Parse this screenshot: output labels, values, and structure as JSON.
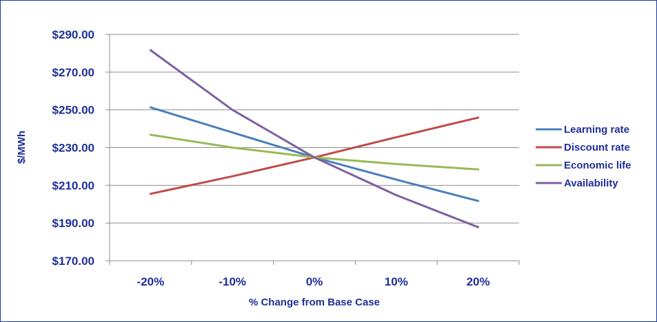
{
  "chart_data": {
    "type": "line",
    "title": "",
    "xlabel": "% Change from Base Case",
    "ylabel": "$/MWh",
    "categories": [
      "-20%",
      "-10%",
      "0%",
      "10%",
      "20%"
    ],
    "ylim": [
      170,
      290
    ],
    "yticks": [
      170,
      190,
      210,
      230,
      250,
      270,
      290
    ],
    "ytick_labels": [
      "$170.00",
      "$190.00",
      "$210.00",
      "$230.00",
      "$250.00",
      "$270.00",
      "$290.00"
    ],
    "grid": "horizontal",
    "legend_position": "right",
    "series": [
      {
        "name": "Learning rate",
        "color": "#4a7ebb",
        "values": [
          251.3,
          238.0,
          224.8,
          213.0,
          201.7
        ]
      },
      {
        "name": "Discount rate",
        "color": "#be4b48",
        "values": [
          205.5,
          214.8,
          224.8,
          235.5,
          245.9
        ]
      },
      {
        "name": "Economic life",
        "color": "#98b954",
        "values": [
          236.8,
          230.0,
          224.8,
          221.3,
          218.4
        ]
      },
      {
        "name": "Availability",
        "color": "#7d60a0",
        "values": [
          281.6,
          250.0,
          224.8,
          204.8,
          187.8
        ]
      }
    ]
  }
}
